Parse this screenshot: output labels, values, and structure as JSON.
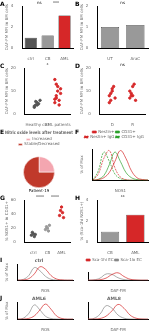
{
  "chart_data": [
    {
      "panel": "A",
      "type": "bar",
      "categories": [
        "ctrl",
        "CB",
        "AML"
      ],
      "values": [
        1,
        1.2,
        3.1
      ],
      "colors": [
        "#555555",
        "#999999",
        "#d62728"
      ],
      "ylabel": "DAF-FM MFI in BM cells",
      "ylim": [
        0,
        4
      ],
      "yticks": [
        0,
        2,
        4
      ],
      "annotations": [
        "ns",
        "***"
      ]
    },
    {
      "panel": "B",
      "type": "bar",
      "categories": [
        "UT",
        "AraC"
      ],
      "values": [
        1,
        1.1
      ],
      "colors": [
        "#999999",
        "#999999"
      ],
      "ylabel": "DAF-FM MFI in BM cells",
      "ylim": [
        0,
        2
      ],
      "yticks": [
        0,
        1,
        2
      ],
      "annotations": [
        "ns"
      ]
    },
    {
      "panel": "C",
      "type": "strip",
      "categories": [
        "Healthy ctrl",
        "AML patients"
      ],
      "values": [
        [
          3,
          4,
          5,
          4.5,
          6,
          3.5,
          5.5,
          4
        ],
        [
          5,
          8,
          12,
          6,
          9,
          15,
          7,
          10,
          4,
          11,
          6.5,
          13
        ]
      ],
      "colors": [
        "#555555",
        "#d62728"
      ],
      "ylabel": "DAF-FM MFI in BM cells",
      "ylim": [
        0,
        20
      ],
      "yticks": [
        0,
        10,
        20
      ],
      "annotations": [
        "*"
      ]
    },
    {
      "panel": "D",
      "type": "strip",
      "categories": [
        "D",
        "R"
      ],
      "values": [
        [
          8,
          6,
          10,
          12,
          7,
          5,
          9,
          11
        ],
        [
          7,
          9,
          8,
          13,
          6,
          10,
          8,
          12
        ]
      ],
      "colors": [
        "#d62728",
        "#d62728"
      ],
      "ylabel": "DAF-FM MFI in BM cells",
      "ylim": [
        0,
        20
      ],
      "yticks": [
        0,
        10,
        20
      ],
      "annotations": [
        "ns"
      ]
    },
    {
      "panel": "E",
      "type": "pie",
      "title": "Nitric oxide levels after treatment",
      "categories": [
        "Increased",
        "Stable/Decreased"
      ],
      "values": [
        25,
        75
      ],
      "colors": [
        "#f4a6b0",
        "#c0392b"
      ],
      "legend": "top",
      "annotations": [
        "Patient-19"
      ]
    },
    {
      "panel": "F",
      "type": "line",
      "xlabel": "NOS1",
      "ylabel": "% of Max",
      "xlim": [
        0,
        10
      ],
      "ylim": [
        0,
        100
      ],
      "tick_labels": false,
      "legend": "top",
      "x": [
        0,
        1,
        2,
        3,
        4,
        5,
        6,
        7,
        8,
        9,
        10
      ],
      "series": [
        {
          "name": "Nestin+",
          "color": "#d62728",
          "values": [
            0,
            2,
            8,
            25,
            60,
            95,
            70,
            30,
            8,
            2,
            0
          ]
        },
        {
          "name": "CD31+",
          "color": "#2ca02c",
          "values": [
            0,
            3,
            15,
            50,
            90,
            60,
            25,
            8,
            2,
            0,
            0
          ]
        },
        {
          "name": "Nestin+ IgG",
          "color": "#d62728",
          "line_style": "dashed",
          "values": [
            0,
            20,
            70,
            95,
            40,
            10,
            2,
            0,
            0,
            0,
            0
          ]
        },
        {
          "name": "CD31+ IgG",
          "color": "#2ca02c",
          "line_style": "dashed",
          "values": [
            0,
            30,
            90,
            60,
            20,
            5,
            1,
            0,
            0,
            0,
            0
          ]
        }
      ]
    },
    {
      "panel": "G",
      "type": "strip",
      "categories": [
        "ctrl",
        "CB",
        "AML"
      ],
      "values": [
        [
          10,
          14,
          12,
          8,
          11
        ],
        [
          18,
          22,
          20,
          16,
          24
        ],
        [
          38,
          45,
          50,
          42,
          35
        ]
      ],
      "colors": [
        "#555555",
        "#999999",
        "#d62728"
      ],
      "ylabel": "% NOS1+ in CD31+",
      "ylim": [
        0,
        60
      ],
      "yticks": [
        0,
        20,
        40,
        60
      ],
      "annotations": [
        "****",
        "****"
      ]
    },
    {
      "panel": "H",
      "type": "bar",
      "categories": [
        "CB",
        "AML"
      ],
      "values": [
        1,
        2.6
      ],
      "colors": [
        "#999999",
        "#d62728"
      ],
      "ylabel": "% (Sca-1hi NOS1+)",
      "ylim": [
        0,
        4
      ],
      "yticks": [
        0,
        2,
        4
      ],
      "annotations": [
        "**"
      ]
    },
    {
      "panel": "I",
      "type": "line",
      "title": "ctrl",
      "xlabel": "ROS",
      "ylabel": "% of Max",
      "xlim": [
        0,
        10
      ],
      "ylim": [
        0,
        100
      ],
      "tick_labels": false,
      "x": [
        0,
        1,
        2,
        3,
        4,
        5,
        6,
        7,
        8,
        9,
        10
      ],
      "series": [
        {
          "color": "#d62728",
          "values": [
            0,
            2,
            10,
            40,
            85,
            70,
            30,
            8,
            2,
            0,
            0
          ]
        },
        {
          "color": "#888888",
          "values": [
            0,
            5,
            30,
            80,
            60,
            25,
            6,
            1,
            0,
            0,
            0
          ]
        }
      ]
    },
    {
      "type": "line",
      "xlabel": "DAF-FM",
      "xlim": [
        0,
        10
      ],
      "ylim": [
        0,
        100
      ],
      "tick_labels": false,
      "legend": "top",
      "x": [
        0,
        1,
        2,
        3,
        4,
        5,
        6,
        7,
        8,
        9,
        10
      ],
      "series": [
        {
          "name": "Sca-1hi EC",
          "color": "#d62728",
          "values": [
            0,
            1,
            6,
            25,
            70,
            90,
            45,
            12,
            3,
            0,
            0
          ]
        },
        {
          "name": "Sca-1lo EC",
          "color": "#888888",
          "values": [
            0,
            4,
            25,
            75,
            70,
            30,
            8,
            2,
            0,
            0,
            0
          ]
        }
      ]
    },
    {
      "panel": "J",
      "type": "line",
      "title": "AML6",
      "xlabel": "ROS",
      "ylabel": "% of Max",
      "xlim": [
        0,
        10
      ],
      "ylim": [
        0,
        100
      ],
      "tick_labels": false,
      "x": [
        0,
        1,
        2,
        3,
        4,
        5,
        6,
        7,
        8,
        9,
        10
      ],
      "series": [
        {
          "color": "#d62728",
          "values": [
            0,
            1,
            5,
            20,
            55,
            90,
            60,
            20,
            4,
            0,
            0
          ]
        },
        {
          "color": "#888888",
          "values": [
            0,
            6,
            35,
            85,
            55,
            18,
            4,
            1,
            0,
            0,
            0
          ]
        }
      ]
    },
    {
      "type": "line",
      "title": "AML8",
      "xlabel": "DAF-FM",
      "xlim": [
        0,
        10
      ],
      "ylim": [
        0,
        100
      ],
      "tick_labels": false,
      "x": [
        0,
        1,
        2,
        3,
        4,
        5,
        6,
        7,
        8,
        9,
        10
      ],
      "series": [
        {
          "color": "#d62728",
          "values": [
            0,
            1,
            4,
            18,
            50,
            88,
            65,
            25,
            6,
            1,
            0
          ]
        },
        {
          "color": "#888888",
          "values": [
            0,
            5,
            30,
            80,
            65,
            25,
            6,
            1,
            0,
            0,
            0
          ]
        }
      ]
    }
  ]
}
